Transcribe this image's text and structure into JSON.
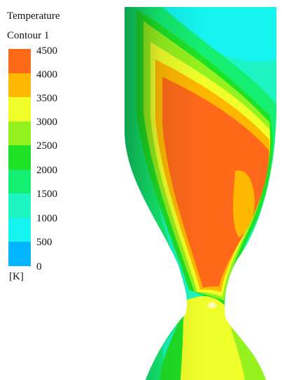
{
  "legend": {
    "title_line1": "Temperature",
    "title_line2": "Contour 1",
    "unit": "[K]",
    "ticks": [
      "4500",
      "4000",
      "3500",
      "3000",
      "2500",
      "2000",
      "1500",
      "1000",
      "500",
      "0"
    ],
    "band_colors": [
      "#ff6a1a",
      "#ffb800",
      "#f0ff2a",
      "#96f21e",
      "#1fe226",
      "#14ef72",
      "#1cf5c2",
      "#15f4ee",
      "#03b5ff",
      "#0a36ff"
    ]
  },
  "chart_data": {
    "type": "heatmap",
    "quantity": "Temperature",
    "unit": "K",
    "range": [
      0,
      4500
    ],
    "levels": [
      0,
      500,
      1000,
      1500,
      2000,
      2500,
      3000,
      3500,
      4000,
      4500
    ]
  }
}
